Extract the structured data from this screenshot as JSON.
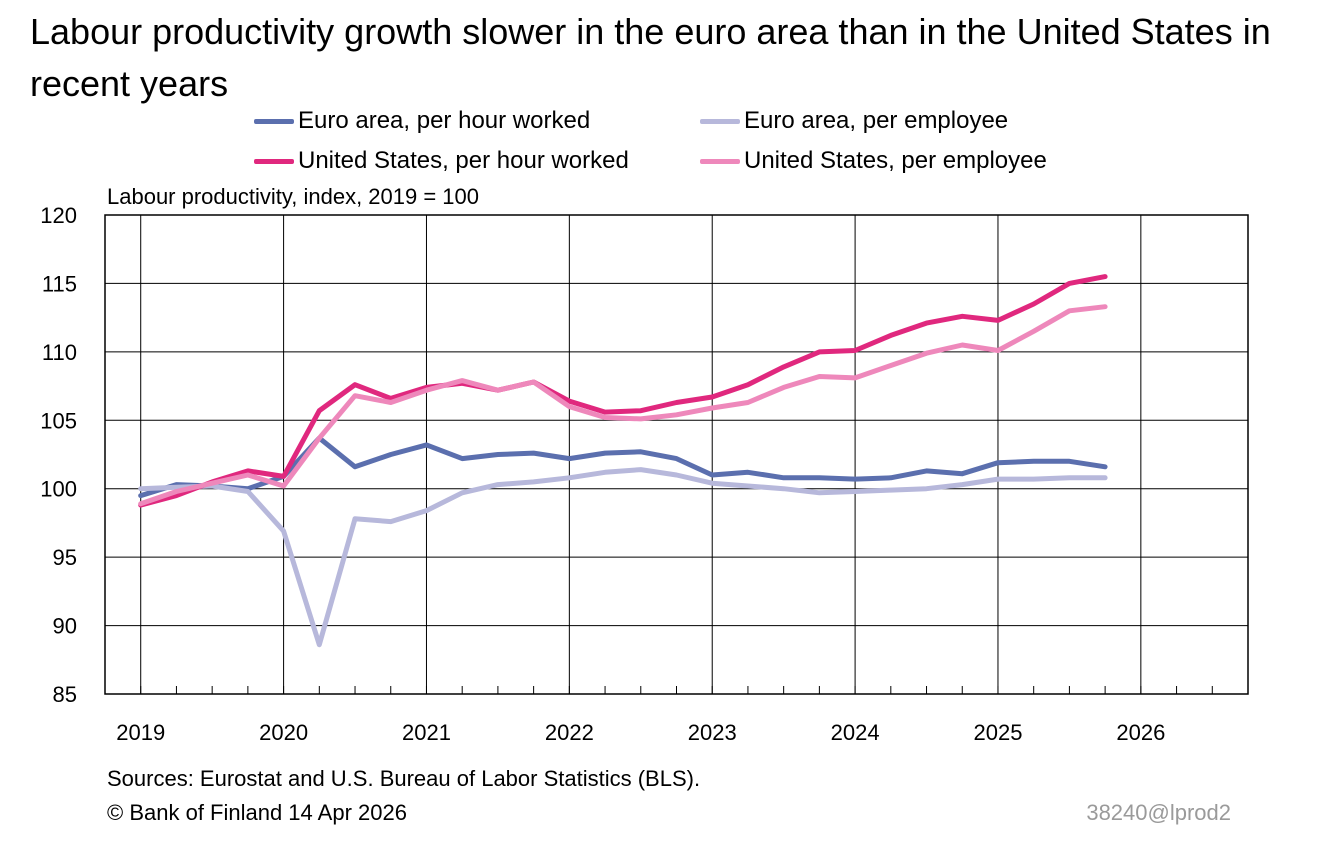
{
  "title": "Labour productivity growth slower in the euro area than in the United States in recent years",
  "legend": [
    {
      "label": "Euro area, per hour worked",
      "color": "#5b6fae"
    },
    {
      "label": "Euro area, per employee",
      "color": "#b7b8db"
    },
    {
      "label": "United States, per hour worked",
      "color": "#e0287e"
    },
    {
      "label": "United States, per employee",
      "color": "#ee88bb"
    }
  ],
  "y_unit_label": "Labour productivity, index, 2019 = 100",
  "sources": "Sources: Eurostat and U.S. Bureau of Labor Statistics (BLS).",
  "copyright": "© Bank of Finland 14 Apr 2026",
  "code": "38240@lprod2",
  "chart_data": {
    "type": "line",
    "x_tick_labels": [
      "2019",
      "2020",
      "2021",
      "2022",
      "2023",
      "2024",
      "2025",
      "2026"
    ],
    "xlim": [
      2018.75,
      2026.75
    ],
    "ylim": [
      85,
      120
    ],
    "y_ticks": [
      85,
      90,
      95,
      100,
      105,
      110,
      115,
      120
    ],
    "grid": true,
    "x": [
      "2019Q1",
      "2019Q2",
      "2019Q3",
      "2019Q4",
      "2020Q1",
      "2020Q2",
      "2020Q3",
      "2020Q4",
      "2021Q1",
      "2021Q2",
      "2021Q3",
      "2021Q4",
      "2022Q1",
      "2022Q2",
      "2022Q3",
      "2022Q4",
      "2023Q1",
      "2023Q2",
      "2023Q3",
      "2023Q4",
      "2024Q1",
      "2024Q2",
      "2024Q3",
      "2024Q4",
      "2025Q1",
      "2025Q2",
      "2025Q3",
      "2025Q4"
    ],
    "series": [
      {
        "name": "Euro area, per hour worked",
        "color": "#5b6fae",
        "values": [
          99.5,
          100.3,
          100.2,
          100.0,
          100.9,
          103.7,
          101.6,
          102.5,
          103.2,
          102.2,
          102.5,
          102.6,
          102.2,
          102.6,
          102.7,
          102.2,
          101.0,
          101.2,
          100.8,
          100.8,
          100.7,
          100.8,
          101.3,
          101.1,
          101.9,
          102.0,
          102.0,
          101.6
        ]
      },
      {
        "name": "Euro area, per employee",
        "color": "#b7b8db",
        "values": [
          100.0,
          100.1,
          100.2,
          99.8,
          96.9,
          88.6,
          97.8,
          97.6,
          98.4,
          99.7,
          100.3,
          100.5,
          100.8,
          101.2,
          101.4,
          101.0,
          100.4,
          100.2,
          100.0,
          99.7,
          99.8,
          99.9,
          100.0,
          100.3,
          100.7,
          100.7,
          100.8,
          100.8
        ]
      },
      {
        "name": "United States, per hour worked",
        "color": "#e0287e",
        "values": [
          98.8,
          99.5,
          100.5,
          101.3,
          100.9,
          105.7,
          107.6,
          106.6,
          107.4,
          107.7,
          107.2,
          107.8,
          106.4,
          105.6,
          105.7,
          106.3,
          106.7,
          107.6,
          108.9,
          110.0,
          110.1,
          111.2,
          112.1,
          112.6,
          112.3,
          113.5,
          115.0,
          115.5
        ]
      },
      {
        "name": "United States, per employee",
        "color": "#ee88bb",
        "values": [
          98.9,
          99.8,
          100.4,
          101.0,
          100.2,
          103.7,
          106.8,
          106.3,
          107.2,
          107.9,
          107.2,
          107.8,
          106.0,
          105.2,
          105.1,
          105.4,
          105.9,
          106.3,
          107.4,
          108.2,
          108.1,
          109.0,
          109.9,
          110.5,
          110.1,
          111.5,
          113.0,
          113.3
        ]
      }
    ]
  }
}
